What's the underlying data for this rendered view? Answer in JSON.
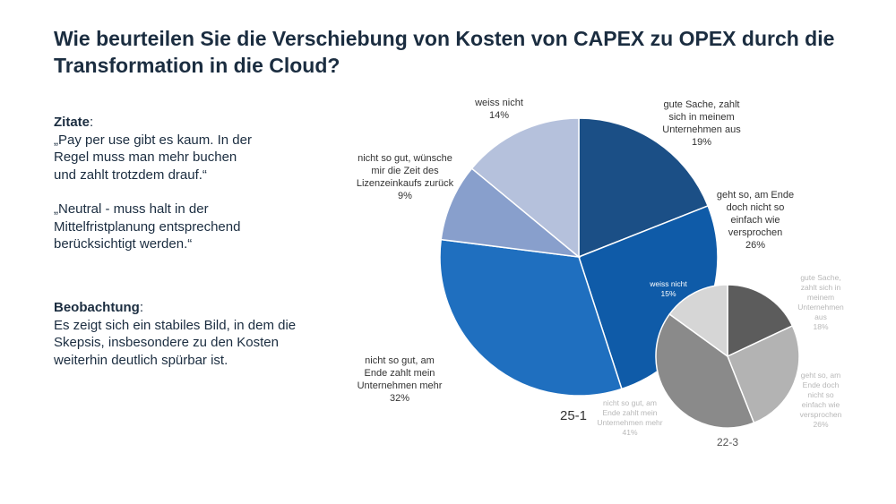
{
  "title": "Wie beurteilen Sie die Verschiebung von Kosten von CAPEX zu OPEX durch die Transformation in die Cloud?",
  "zitate": {
    "heading": "Zitate",
    "colon": ":",
    "quote1_lines": [
      "„Pay per use gibt es kaum. In der",
      "Regel muss man mehr buchen",
      "und zahlt trotzdem drauf.“"
    ],
    "quote2_lines": [
      "„Neutral - muss halt in der",
      "Mittelfristplanung entsprechend",
      "berücksichtigt werden.“"
    ]
  },
  "beobachtung": {
    "heading": "Beobachtung",
    "colon": ":",
    "lines": [
      "Es zeigt sich ein stabiles Bild, in dem die",
      "Skepsis, insbesondere zu den Kosten",
      "weiterhin deutlich spürbar ist."
    ]
  },
  "chart_data": [
    {
      "type": "pie",
      "title": "25-1",
      "slices": [
        {
          "label_lines": [
            "gute Sache, zahlt",
            "sich in meinem",
            "Unternehmen aus"
          ],
          "value": 19,
          "pct": "19%",
          "color": "#1b4f86"
        },
        {
          "label_lines": [
            "geht so, am Ende",
            "doch nicht so",
            "einfach wie",
            "versprochen"
          ],
          "value": 26,
          "pct": "26%",
          "color": "#0f5ba8"
        },
        {
          "label_lines": [
            "nicht so gut, am",
            "Ende zahlt mein",
            "Unternehmen mehr"
          ],
          "value": 32,
          "pct": "32%",
          "color": "#1f6fbf"
        },
        {
          "label_lines": [
            "nicht so gut, wünsche",
            "mir die Zeit des",
            "Lizenzeinkaufs zurück"
          ],
          "value": 9,
          "pct": "9%",
          "color": "#889fcc"
        },
        {
          "label_lines": [
            "weiss nicht"
          ],
          "value": 14,
          "pct": "14%",
          "color": "#b5c1dc"
        }
      ]
    },
    {
      "type": "pie",
      "title": "22-3",
      "slices": [
        {
          "label_lines": [
            "gute Sache,",
            "zahlt sich in",
            "meinem",
            "Unternehmen",
            "aus"
          ],
          "value": 18,
          "pct": "18%",
          "color": "#5c5c5c"
        },
        {
          "label_lines": [
            "geht so, am",
            "Ende doch",
            "nicht so",
            "einfach wie",
            "versprochen"
          ],
          "value": 26,
          "pct": "26%",
          "color": "#b3b3b3"
        },
        {
          "label_lines": [
            "nicht so gut, am",
            "Ende zahlt mein",
            "Unternehmen mehr"
          ],
          "value": 41,
          "pct": "41%",
          "color": "#8a8a8a"
        },
        {
          "label_lines": [
            "weiss nicht"
          ],
          "value": 15,
          "pct": "15%",
          "color": "#d6d6d6"
        }
      ]
    }
  ]
}
